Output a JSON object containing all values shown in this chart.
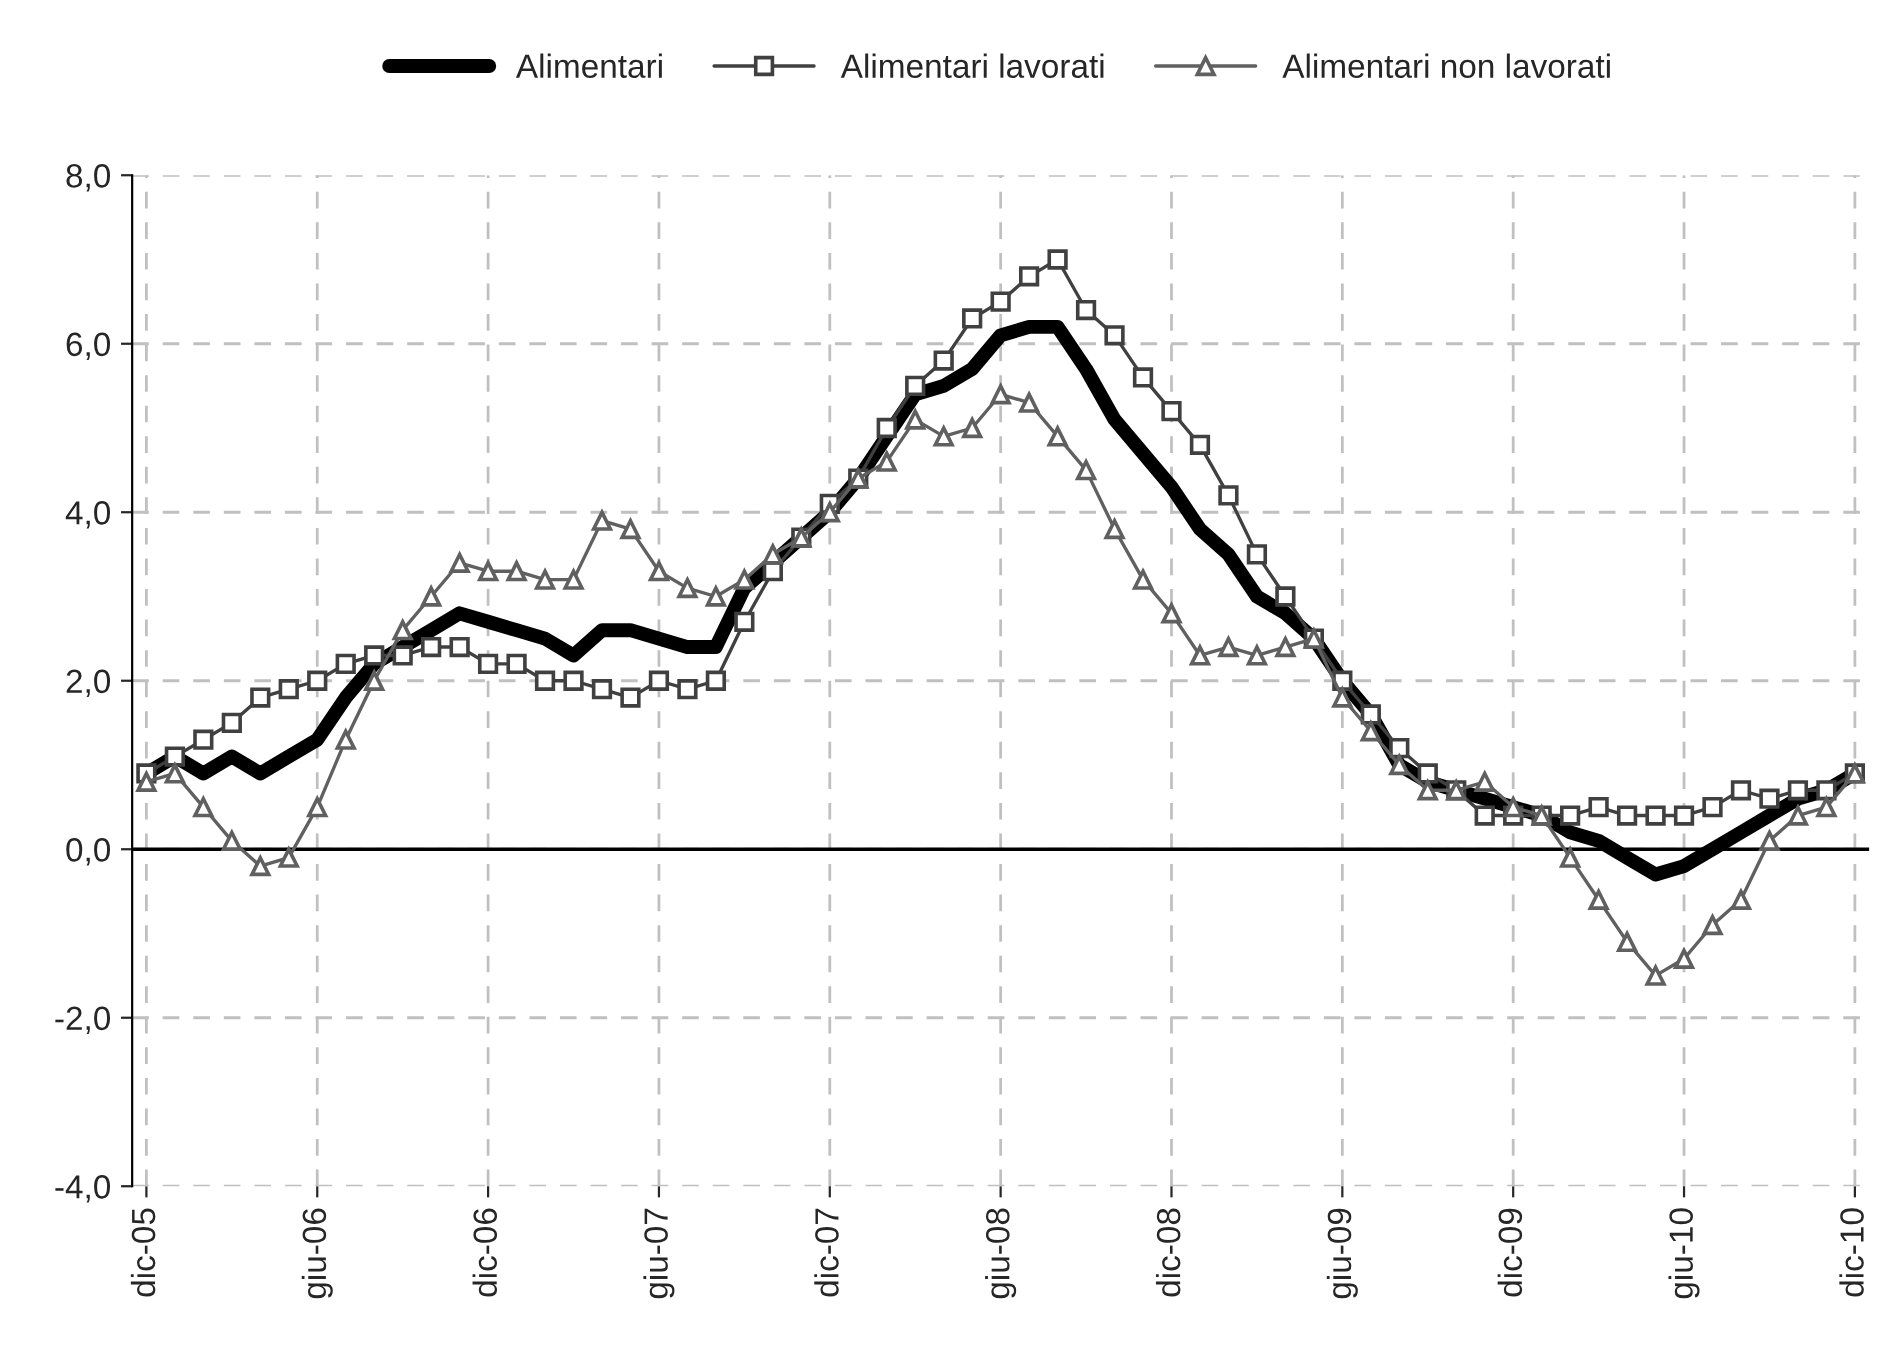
{
  "chart_data": {
    "type": "line",
    "categories": [
      "dic-05",
      null,
      null,
      null,
      null,
      null,
      "giu-06",
      null,
      null,
      null,
      null,
      null,
      "dic-06",
      null,
      null,
      null,
      null,
      null,
      "giu-07",
      null,
      null,
      null,
      null,
      null,
      "dic-07",
      null,
      null,
      null,
      null,
      null,
      "giu-08",
      null,
      null,
      null,
      null,
      null,
      "dic-08",
      null,
      null,
      null,
      null,
      null,
      "giu-09",
      null,
      null,
      null,
      null,
      null,
      "dic-09",
      null,
      null,
      null,
      null,
      null,
      "giu-10",
      null,
      null,
      null,
      null,
      null,
      "dic-10"
    ],
    "series": [
      {
        "name": "Alimentari",
        "color": "#000000",
        "marker": "none",
        "values": [
          0.9,
          1.1,
          0.9,
          1.1,
          0.9,
          1.1,
          1.3,
          1.8,
          2.2,
          2.4,
          2.6,
          2.8,
          2.7,
          2.6,
          2.5,
          2.3,
          2.6,
          2.6,
          2.5,
          2.4,
          2.4,
          3.1,
          3.4,
          3.7,
          4.0,
          4.4,
          4.9,
          5.4,
          5.5,
          5.7,
          6.1,
          6.2,
          6.2,
          5.7,
          5.1,
          4.7,
          4.3,
          3.8,
          3.5,
          3.0,
          2.8,
          2.5,
          2.0,
          1.6,
          1.0,
          0.8,
          0.7,
          0.6,
          0.5,
          0.4,
          0.2,
          0.1,
          -0.1,
          -0.3,
          -0.2,
          0.0,
          0.2,
          0.4,
          0.6,
          0.7,
          0.9
        ]
      },
      {
        "name": "Alimentari lavorati",
        "color": "#404040",
        "marker": "square",
        "values": [
          0.9,
          1.1,
          1.3,
          1.5,
          1.8,
          1.9,
          2.0,
          2.2,
          2.3,
          2.3,
          2.4,
          2.4,
          2.2,
          2.2,
          2.0,
          2.0,
          1.9,
          1.8,
          2.0,
          1.9,
          2.0,
          2.7,
          3.3,
          3.7,
          4.1,
          4.4,
          5.0,
          5.5,
          5.8,
          6.3,
          6.5,
          6.8,
          7.0,
          6.4,
          6.1,
          5.6,
          5.2,
          4.8,
          4.2,
          3.5,
          3.0,
          2.5,
          2.0,
          1.6,
          1.2,
          0.9,
          0.7,
          0.4,
          0.4,
          0.4,
          0.4,
          0.5,
          0.4,
          0.4,
          0.4,
          0.5,
          0.7,
          0.6,
          0.7,
          0.7,
          0.9
        ]
      },
      {
        "name": "Alimentari non lavorati",
        "color": "#606060",
        "marker": "triangle",
        "values": [
          0.8,
          0.9,
          0.5,
          0.1,
          -0.2,
          -0.1,
          0.5,
          1.3,
          2.0,
          2.6,
          3.0,
          3.4,
          3.3,
          3.3,
          3.2,
          3.2,
          3.9,
          3.8,
          3.3,
          3.1,
          3.0,
          3.2,
          3.5,
          3.7,
          4.0,
          4.4,
          4.6,
          5.1,
          4.9,
          5.0,
          5.4,
          5.3,
          4.9,
          4.5,
          3.8,
          3.2,
          2.8,
          2.3,
          2.4,
          2.3,
          2.4,
          2.5,
          1.8,
          1.4,
          1.0,
          0.7,
          0.7,
          0.8,
          0.5,
          0.4,
          -0.1,
          -0.6,
          -1.1,
          -1.5,
          -1.3,
          -0.9,
          -0.6,
          0.1,
          0.4,
          0.5,
          0.9
        ]
      }
    ],
    "ylim": [
      -4,
      8
    ],
    "yticks": [
      {
        "value": -4,
        "label": "-4,0"
      },
      {
        "value": -2,
        "label": "-2,0"
      },
      {
        "value": 0,
        "label": "0,0"
      },
      {
        "value": 2,
        "label": "2,0"
      },
      {
        "value": 4,
        "label": "4,0"
      },
      {
        "value": 6,
        "label": "6,0"
      },
      {
        "value": 8,
        "label": "8,0"
      }
    ],
    "ref_lines": [
      {
        "axis": "y",
        "value": 0,
        "color": "#000000",
        "line_style": "solid"
      }
    ],
    "grid": true,
    "legend": "top",
    "line_style": "solid"
  }
}
